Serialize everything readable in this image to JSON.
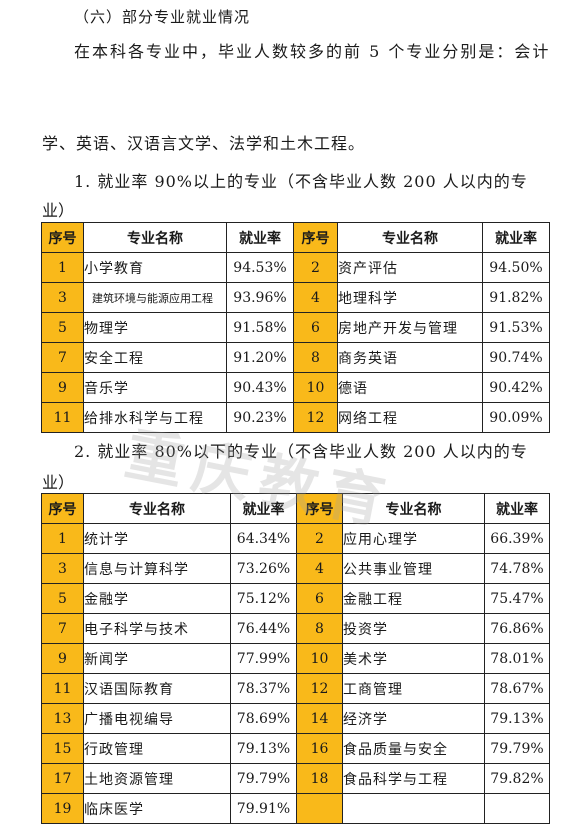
{
  "section_heading": "（六）部分专业就业情况",
  "intro": {
    "line1": "在本科各专业中，毕业人数较多的前 5 个专业分别是：会计",
    "line2": "学、英语、汉语言文学、法学和土木工程。"
  },
  "headers": {
    "no": "序号",
    "name": "专业名称",
    "rate": "就业率"
  },
  "table1": {
    "heading": "1. 就业率 90%以上的专业（不含毕业人数 200 人以内的专",
    "heading_wrap": "业）",
    "rows": [
      {
        "no1": "1",
        "name1": "小学教育",
        "rate1": "94.53%",
        "no2": "2",
        "name2": "资产评估",
        "rate2": "94.50%"
      },
      {
        "no1": "3",
        "name1": "建筑环境与能源应用工程",
        "rate1": "93.96%",
        "no2": "4",
        "name2": "地理科学",
        "rate2": "91.82%"
      },
      {
        "no1": "5",
        "name1": "物理学",
        "rate1": "91.58%",
        "no2": "6",
        "name2": "房地产开发与管理",
        "rate2": "91.53%"
      },
      {
        "no1": "7",
        "name1": "安全工程",
        "rate1": "91.20%",
        "no2": "8",
        "name2": "商务英语",
        "rate2": "90.74%"
      },
      {
        "no1": "9",
        "name1": "音乐学",
        "rate1": "90.43%",
        "no2": "10",
        "name2": "德语",
        "rate2": "90.42%"
      },
      {
        "no1": "11",
        "name1": "给排水科学与工程",
        "rate1": "90.23%",
        "no2": "12",
        "name2": "网络工程",
        "rate2": "90.09%"
      }
    ]
  },
  "table2": {
    "heading": "2. 就业率 80%以下的专业（不含毕业人数 200 人以内的专",
    "heading_wrap": "业）",
    "rows": [
      {
        "no1": "1",
        "name1": "统计学",
        "rate1": "64.34%",
        "no2": "2",
        "name2": "应用心理学",
        "rate2": "66.39%"
      },
      {
        "no1": "3",
        "name1": "信息与计算科学",
        "rate1": "73.26%",
        "no2": "4",
        "name2": "公共事业管理",
        "rate2": "74.78%"
      },
      {
        "no1": "5",
        "name1": "金融学",
        "rate1": "75.12%",
        "no2": "6",
        "name2": "金融工程",
        "rate2": "75.47%"
      },
      {
        "no1": "7",
        "name1": "电子科学与技术",
        "rate1": "76.44%",
        "no2": "8",
        "name2": "投资学",
        "rate2": "76.86%"
      },
      {
        "no1": "9",
        "name1": "新闻学",
        "rate1": "77.99%",
        "no2": "10",
        "name2": "美术学",
        "rate2": "78.01%"
      },
      {
        "no1": "11",
        "name1": "汉语国际教育",
        "rate1": "78.37%",
        "no2": "12",
        "name2": "工商管理",
        "rate2": "78.67%"
      },
      {
        "no1": "13",
        "name1": "广播电视编导",
        "rate1": "78.69%",
        "no2": "14",
        "name2": "经济学",
        "rate2": "79.13%"
      },
      {
        "no1": "15",
        "name1": "行政管理",
        "rate1": "79.13%",
        "no2": "16",
        "name2": "食品质量与安全",
        "rate2": "79.79%"
      },
      {
        "no1": "17",
        "name1": "土地资源管理",
        "rate1": "79.79%",
        "no2": "18",
        "name2": "食品科学与工程",
        "rate2": "79.82%"
      },
      {
        "no1": "19",
        "name1": "临床医学",
        "rate1": "79.91%",
        "no2": "",
        "name2": "",
        "rate2": ""
      }
    ]
  },
  "watermark": "重庆教育",
  "accent_color": "#f9b91a"
}
